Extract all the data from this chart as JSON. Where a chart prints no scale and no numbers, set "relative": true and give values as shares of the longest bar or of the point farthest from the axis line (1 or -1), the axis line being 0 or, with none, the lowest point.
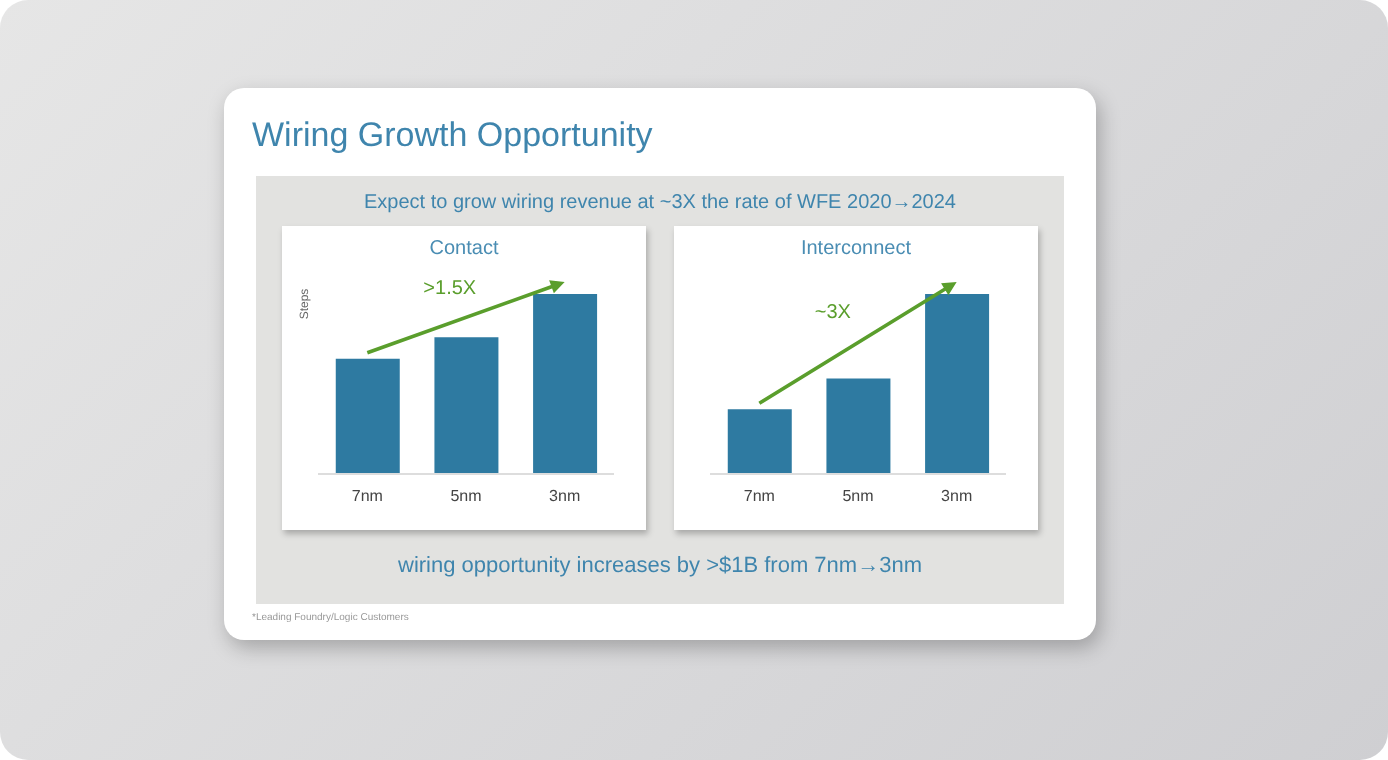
{
  "chart_data": [
    {
      "type": "other",
      "title": "Wiring Growth Opportunity",
      "subtitle": "Expect to grow wiring revenue at ~3X the rate of WFE 2020→2024",
      "annotations": [
        "wiring opportunity increases by >$1B from 7nm→3nm",
        "*Leading Foundry/Logic Customers"
      ]
    },
    {
      "type": "bar",
      "title": "Contact",
      "ylabel": "Steps",
      "categories": [
        "7nm",
        "5nm",
        "3nm"
      ],
      "values": [
        0.64,
        0.76,
        1
      ],
      "color": "#2e7aa1",
      "relative": true,
      "annotations": [
        ">1.5X"
      ]
    },
    {
      "type": "bar",
      "title": "Interconnect",
      "categories": [
        "7nm",
        "5nm",
        "3nm"
      ],
      "values": [
        0.36,
        0.53,
        1
      ],
      "color": "#2e7aa1",
      "relative": true,
      "annotations": [
        "~3X"
      ]
    }
  ]
}
